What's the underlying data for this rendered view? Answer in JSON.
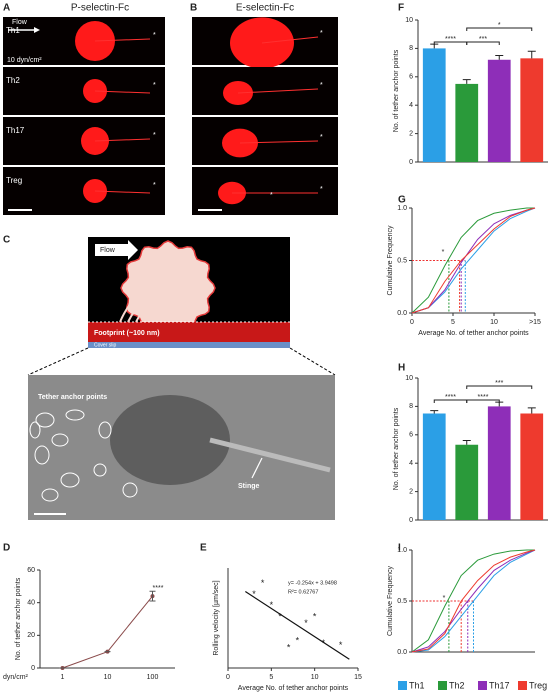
{
  "figure": {
    "panel_labels": [
      "A",
      "B",
      "C",
      "D",
      "E",
      "F",
      "G",
      "H",
      "I"
    ],
    "column_titles": [
      "P-selectin-Fc",
      "E-selectin-Fc"
    ],
    "row_labels": [
      "Th1",
      "Th2",
      "Th17",
      "Treg"
    ],
    "flow": "Flow",
    "shear": "10 dyn/cm²",
    "asterisk": "*",
    "footprint": "Footprint (~100 nm)",
    "cover_slip": "Cover slip",
    "tether_label": "Tether anchor points",
    "stinger": "Stinge",
    "legend": [
      {
        "name": "Th1",
        "color": "#2b9fe6"
      },
      {
        "name": "Th2",
        "color": "#2a9a3a"
      },
      {
        "name": "Th17",
        "color": "#8e2eb8"
      },
      {
        "name": "Treg",
        "color": "#ee3a2e"
      }
    ]
  },
  "chart_data": [
    {
      "type": "bar",
      "ylabel": "No. of tether anchor points",
      "values": [
        8.0,
        5.5,
        7.2,
        7.3
      ],
      "errors": [
        0.3,
        0.3,
        0.3,
        0.5
      ],
      "colors": [
        "#2b9fe6",
        "#2a9a3a",
        "#8e2eb8",
        "#ee3a2e"
      ],
      "ylim": [
        0,
        10
      ],
      "yticks": [
        0,
        2,
        4,
        6,
        8,
        10
      ],
      "annotations": [
        "****",
        "***",
        "*"
      ]
    },
    {
      "type": "line",
      "ylabel": "Cumulative Frequency",
      "xlabel": "Average No. of tether anchor points",
      "x": [
        0,
        2,
        4,
        6,
        8,
        10,
        12,
        14,
        15
      ],
      "series": [
        {
          "name": "Th1",
          "color": "#2b9fe6",
          "values": [
            0,
            0.05,
            0.2,
            0.42,
            0.6,
            0.78,
            0.9,
            0.97,
            1
          ]
        },
        {
          "name": "Th2",
          "color": "#2a9a3a",
          "values": [
            0,
            0.15,
            0.45,
            0.72,
            0.88,
            0.95,
            0.98,
            1,
            1
          ]
        },
        {
          "name": "Th17",
          "color": "#8e2eb8",
          "values": [
            0,
            0.05,
            0.22,
            0.48,
            0.7,
            0.85,
            0.93,
            0.98,
            1
          ]
        },
        {
          "name": "Treg",
          "color": "#ee3a2e",
          "values": [
            0,
            0.05,
            0.3,
            0.5,
            0.65,
            0.8,
            0.92,
            0.98,
            1
          ]
        }
      ],
      "medians": [
        6.5,
        4.5,
        6.0,
        5.8
      ],
      "reference_y": 0.5,
      "xlim": [
        0,
        15
      ],
      "xticks": [
        0,
        5,
        10,
        {
          "value": 15,
          "label": ">15"
        }
      ],
      "ylim": [
        0,
        1
      ],
      "yticks": [
        {
          "value": 0,
          "label": "0.0"
        },
        0.5,
        {
          "value": 1,
          "label": "1.0"
        }
      ],
      "annotations": [
        "*"
      ]
    },
    {
      "type": "bar",
      "ylabel": "No. of tether anchor points",
      "values": [
        7.5,
        5.3,
        8.0,
        7.5
      ],
      "errors": [
        0.2,
        0.3,
        0.3,
        0.4
      ],
      "colors": [
        "#2b9fe6",
        "#2a9a3a",
        "#8e2eb8",
        "#ee3a2e"
      ],
      "ylim": [
        0,
        10
      ],
      "yticks": [
        0,
        2,
        4,
        6,
        8,
        10
      ],
      "annotations": [
        "****",
        "****",
        "***"
      ]
    },
    {
      "type": "line",
      "ylabel": "Cumulative Frequency",
      "x": [
        0,
        2,
        4,
        6,
        8,
        10,
        12,
        14,
        15
      ],
      "series": [
        {
          "name": "Th1",
          "color": "#2b9fe6",
          "values": [
            0,
            0.02,
            0.15,
            0.35,
            0.55,
            0.75,
            0.88,
            0.96,
            1
          ]
        },
        {
          "name": "Th2",
          "color": "#2a9a3a",
          "values": [
            0,
            0.12,
            0.45,
            0.75,
            0.9,
            0.96,
            0.99,
            1,
            1
          ]
        },
        {
          "name": "Th17",
          "color": "#8e2eb8",
          "values": [
            0,
            0.05,
            0.2,
            0.42,
            0.62,
            0.8,
            0.9,
            0.97,
            1
          ]
        },
        {
          "name": "Treg",
          "color": "#ee3a2e",
          "values": [
            0,
            0.03,
            0.18,
            0.5,
            0.7,
            0.85,
            0.93,
            0.98,
            1
          ]
        }
      ],
      "medians": [
        7.5,
        4.5,
        6.8,
        6.0
      ],
      "reference_y": 0.5,
      "xlim": [
        0,
        15
      ],
      "ylim": [
        0,
        1
      ],
      "yticks": [
        {
          "value": 0,
          "label": "0.0"
        },
        0.5,
        {
          "value": 1,
          "label": "1.0"
        }
      ],
      "annotations": [
        "*"
      ]
    },
    {
      "type": "line",
      "ylabel": "No. of tether anchor points",
      "xlabel": "dyn/cm²",
      "categories": [
        "1",
        "10",
        "100"
      ],
      "series": [
        {
          "color": "#8a4a4a",
          "values": [
            0,
            10,
            44
          ],
          "errors": [
            0,
            0,
            3
          ]
        }
      ],
      "ylim": [
        0,
        60
      ],
      "yticks": [
        0,
        20,
        40,
        60
      ],
      "annotations": [
        "****"
      ]
    },
    {
      "type": "scatter",
      "ylabel": "Rolling velocity [µm/sec]",
      "xlabel": "Average No. of tether anchor points",
      "x": [
        3,
        4,
        5,
        6,
        7,
        8,
        9,
        10,
        11,
        13
      ],
      "values": [
        3.3,
        3.8,
        2.8,
        2.3,
        0.9,
        1.2,
        2.0,
        2.3,
        1.1,
        1.0
      ],
      "fit": {
        "slope": -0.254,
        "intercept": 3.9498
      },
      "xlim": [
        0,
        15
      ],
      "xticks": [
        0,
        5,
        10,
        15
      ],
      "ylim": [
        0,
        4.5
      ],
      "annotations": [
        "y= -0.254x + 3.9498",
        "R²= 0.62767"
      ]
    }
  ]
}
